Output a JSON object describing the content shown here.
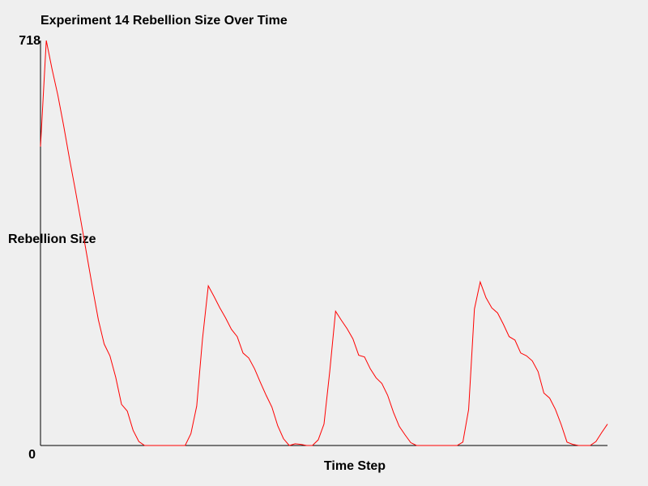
{
  "chart_data": {
    "type": "line",
    "title": "Experiment 14 Rebellion Size Over Time",
    "xlabel": "Time Step",
    "ylabel": "Rebellion Size",
    "ylim": [
      0,
      718
    ],
    "y_tick_labels": [
      "0",
      "718"
    ],
    "grid": false,
    "series": [
      {
        "color": "#ff0000",
        "values": [
          530,
          718,
          667,
          621,
          567,
          509,
          454,
          397,
          338,
          279,
          223,
          180,
          159,
          121,
          73,
          61,
          27,
          7,
          0,
          0,
          0,
          0,
          0,
          0,
          0,
          0,
          21,
          70,
          189,
          283,
          264,
          244,
          226,
          206,
          193,
          164,
          155,
          136,
          112,
          89,
          68,
          35,
          12,
          0,
          3,
          2,
          0,
          0,
          10,
          38,
          132,
          238,
          222,
          207,
          189,
          160,
          157,
          136,
          120,
          110,
          89,
          59,
          34,
          19,
          5,
          0,
          0,
          0,
          0,
          0,
          0,
          0,
          0,
          6,
          64,
          242,
          290,
          262,
          244,
          235,
          215,
          193,
          187,
          164,
          159,
          150,
          131,
          93,
          84,
          64,
          37,
          6,
          2,
          0,
          0,
          0,
          7,
          23,
          38
        ]
      }
    ]
  }
}
